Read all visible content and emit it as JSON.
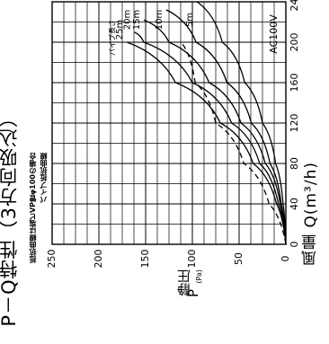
{
  "header": {
    "title": "P－Q特性（3方向吸込）",
    "note1": "抵抗曲線は塩ビVP管φ100の場合",
    "note2": "パイプ抵抗曲線"
  },
  "axes": {
    "ylabel": "静圧",
    "yunit": "(Pa)",
    "ysymbol": "P",
    "xlabel": "風量 Q(m³/h)"
  },
  "chart_data": {
    "type": "line",
    "title": "P－Q特性（3方向吸込）",
    "subtitle": "AC100V",
    "xlabel": "風量 Q(m³/h)",
    "ylabel": "静圧 P (Pa)",
    "xlim": [
      0,
      240
    ],
    "ylim": [
      0,
      250
    ],
    "x_ticks": [
      "0",
      "40",
      "80",
      "120",
      "160",
      "200",
      "240"
    ],
    "y_ticks": [
      "0",
      "50",
      "100",
      "150",
      "200",
      "250"
    ],
    "grid": true,
    "orientation": "rotated-90",
    "legend_title": "パイプ長さ",
    "series": [
      {
        "name": "パイプ抵抗曲線",
        "style": "dashed",
        "x": [
          0,
          40,
          80,
          120,
          160,
          200
        ],
        "y": [
          0,
          18,
          45,
          75,
          97,
          112
        ]
      },
      {
        "name": "25m",
        "style": "solid",
        "x": [
          0,
          40,
          80,
          120,
          160,
          200
        ],
        "y": [
          0,
          10,
          35,
          70,
          118,
          170
        ]
      },
      {
        "name": "20m",
        "style": "solid",
        "x": [
          0,
          40,
          80,
          120,
          160,
          200,
          210
        ],
        "y": [
          0,
          8,
          28,
          58,
          100,
          152,
          162
        ]
      },
      {
        "name": "15m",
        "style": "solid",
        "x": [
          0,
          40,
          80,
          120,
          160,
          200,
          222
        ],
        "y": [
          0,
          6,
          22,
          48,
          82,
          125,
          152
        ]
      },
      {
        "name": "10m",
        "style": "solid",
        "x": [
          0,
          40,
          80,
          120,
          160,
          200,
          232
        ],
        "y": [
          0,
          5,
          17,
          37,
          63,
          96,
          128
        ]
      },
      {
        "name": "5m",
        "style": "solid",
        "x": [
          0,
          40,
          80,
          120,
          160,
          200,
          240
        ],
        "y": [
          0,
          3,
          11,
          25,
          44,
          68,
          95
        ]
      }
    ]
  }
}
